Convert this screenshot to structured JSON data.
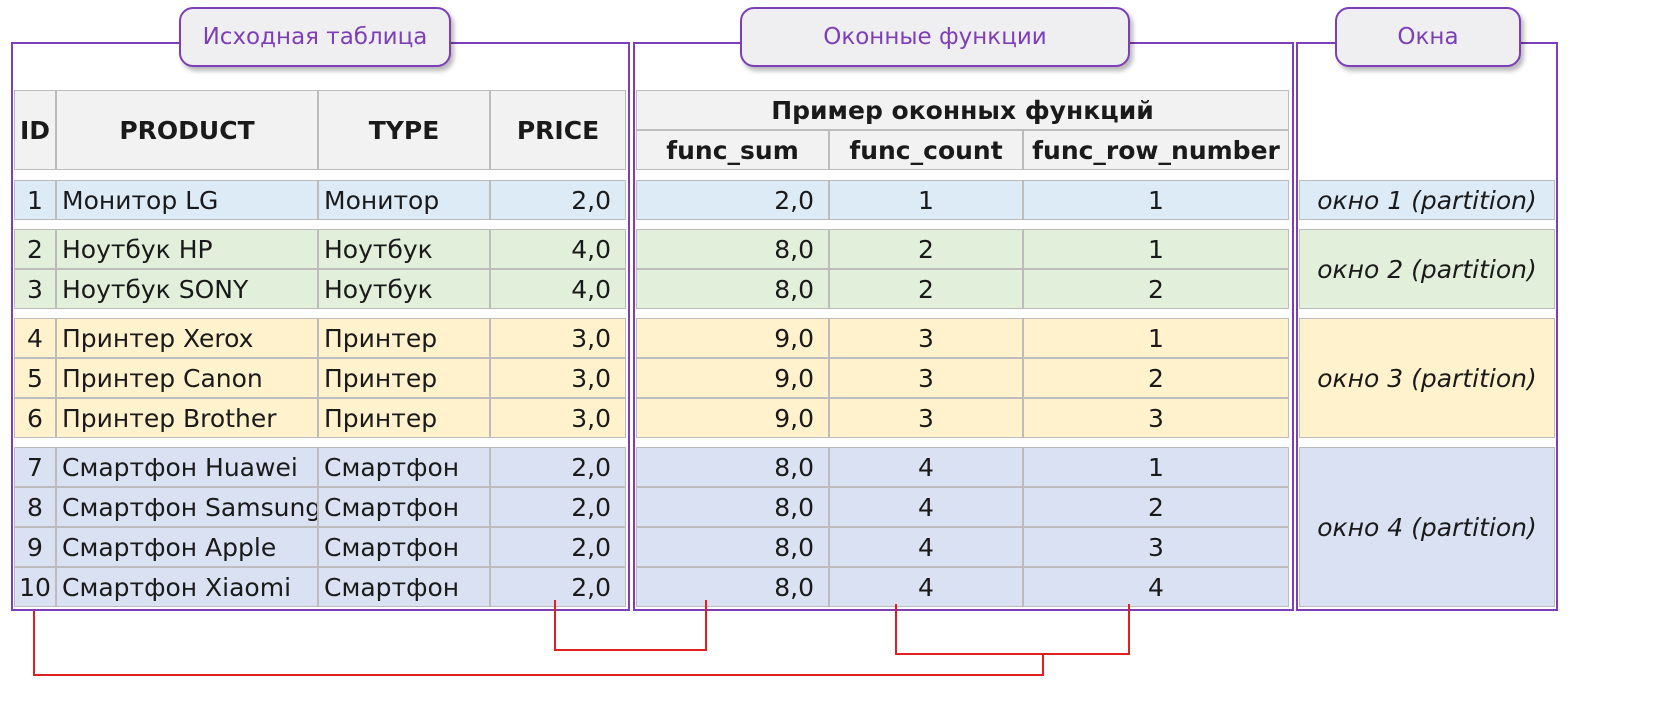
{
  "labels": {
    "source": "Исходная таблица",
    "window_funcs": "Оконные функции",
    "windows": "Окна"
  },
  "source_table": {
    "headers": [
      "ID",
      "PRODUCT",
      "TYPE",
      "PRICE"
    ],
    "rows": [
      [
        "1",
        "Монитор LG",
        "Монитор",
        "2,0"
      ],
      [
        "2",
        "Ноутбук HP",
        "Ноутбук",
        "4,0"
      ],
      [
        "3",
        "Ноутбук SONY",
        "Ноутбук",
        "4,0"
      ],
      [
        "4",
        "Принтер Xerox",
        "Принтер",
        "3,0"
      ],
      [
        "5",
        "Принтер Canon",
        "Принтер",
        "3,0"
      ],
      [
        "6",
        "Принтер Brother",
        "Принтер",
        "3,0"
      ],
      [
        "7",
        "Смартфон Huawei",
        "Смартфон",
        "2,0"
      ],
      [
        "8",
        "Смартфон Samsung",
        "Смартфон",
        "2,0"
      ],
      [
        "9",
        "Смартфон Apple",
        "Смартфон",
        "2,0"
      ],
      [
        "10",
        "Смартфон Xiaomi",
        "Смартфон",
        "2,0"
      ]
    ]
  },
  "window_table": {
    "title": "Пример оконных функций",
    "headers": [
      "func_sum",
      "func_count",
      "func_row_number"
    ],
    "rows": [
      [
        "2,0",
        "1",
        "1"
      ],
      [
        "8,0",
        "2",
        "1"
      ],
      [
        "8,0",
        "2",
        "2"
      ],
      [
        "9,0",
        "3",
        "1"
      ],
      [
        "9,0",
        "3",
        "2"
      ],
      [
        "9,0",
        "3",
        "3"
      ],
      [
        "8,0",
        "4",
        "1"
      ],
      [
        "8,0",
        "4",
        "2"
      ],
      [
        "8,0",
        "4",
        "3"
      ],
      [
        "8,0",
        "4",
        "4"
      ]
    ]
  },
  "partitions": [
    {
      "label": "окно 1 (partition)",
      "color": "#ddebf7"
    },
    {
      "label": "окно 2 (partition)",
      "color": "#e2efda"
    },
    {
      "label": "окно 3 (partition)",
      "color": "#fff2cc"
    },
    {
      "label": "окно 4 (partition)",
      "color": "#d9e1f2"
    }
  ],
  "colors": {
    "frame": "#7d3fb8",
    "connector": "#e02020",
    "header_bg": "#f2f2f2"
  }
}
